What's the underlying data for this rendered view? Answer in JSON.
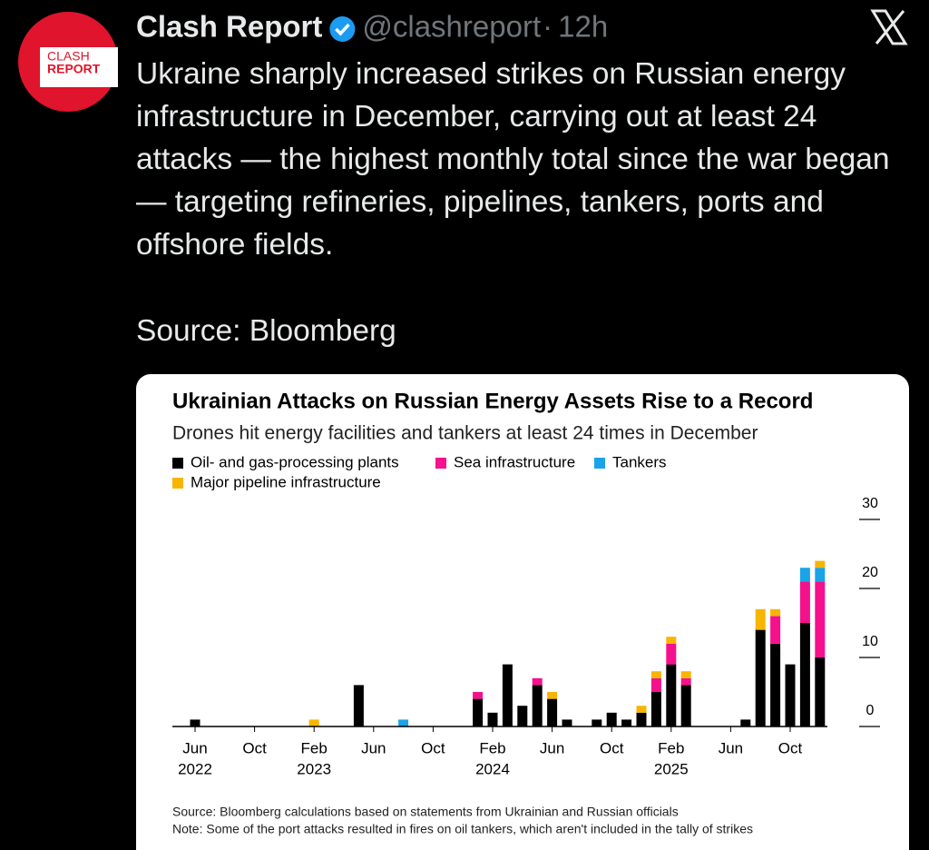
{
  "tweet": {
    "author": "Clash Report",
    "handle": "@clashreport",
    "separator": "·",
    "time": "12h",
    "avatar_top": "CLASH",
    "avatar_bottom": "REPORT",
    "text": "Ukraine sharply increased strikes on Russian energy infrastructure in December, carrying out at least 24 attacks — the highest monthly total since the war began — targeting refineries, pipelines, tankers, ports and offshore fields.",
    "source": "Source: Bloomberg"
  },
  "chart_data": {
    "type": "stacked_bar",
    "title": "Ukrainian Attacks on Russian Energy Assets Rise to a Record",
    "subtitle": "Drones hit energy facilities and tankers at least 24 times in December",
    "categories": [
      "Jun",
      null,
      null,
      null,
      "Oct",
      null,
      null,
      null,
      "Feb",
      null,
      null,
      null,
      "Jun",
      null,
      null,
      null,
      "Oct",
      null,
      null,
      null,
      "Feb",
      null,
      null,
      null,
      "Jun",
      null,
      null,
      null,
      "Oct",
      null,
      null,
      null,
      "Feb",
      null,
      null,
      null,
      "Jun",
      null,
      null,
      null,
      "Oct",
      null,
      null
    ],
    "years": [
      "2022",
      null,
      null,
      null,
      null,
      null,
      null,
      null,
      "2023",
      null,
      null,
      null,
      null,
      null,
      null,
      null,
      null,
      null,
      null,
      null,
      "2024",
      null,
      null,
      null,
      null,
      null,
      null,
      null,
      null,
      null,
      null,
      null,
      "2025",
      null,
      null,
      null,
      null,
      null,
      null,
      null,
      null,
      null,
      null
    ],
    "series": [
      {
        "name": "Oil- and gas-processing plants",
        "color": "#000000",
        "values": [
          1,
          0,
          0,
          0,
          0,
          0,
          0,
          0,
          0,
          0,
          0,
          6,
          0,
          0,
          0,
          0,
          0,
          0,
          0,
          4,
          2,
          9,
          3,
          6,
          4,
          1,
          0,
          1,
          2,
          1,
          2,
          5,
          9,
          6,
          0,
          0,
          0,
          1,
          14,
          12,
          9,
          15,
          10
        ]
      },
      {
        "name": "Sea infrastructure",
        "color": "#f5108c",
        "values": [
          0,
          0,
          0,
          0,
          0,
          0,
          0,
          0,
          0,
          0,
          0,
          0,
          0,
          0,
          0,
          0,
          0,
          0,
          0,
          1,
          0,
          0,
          0,
          1,
          0,
          0,
          0,
          0,
          0,
          0,
          0,
          2,
          3,
          1,
          0,
          0,
          0,
          0,
          0,
          4,
          0,
          6,
          11
        ]
      },
      {
        "name": "Tankers",
        "color": "#1aa3e8",
        "values": [
          0,
          0,
          0,
          0,
          0,
          0,
          0,
          0,
          0,
          0,
          0,
          0,
          0,
          0,
          1,
          0,
          0,
          0,
          0,
          0,
          0,
          0,
          0,
          0,
          0,
          0,
          0,
          0,
          0,
          0,
          0,
          0,
          0,
          0,
          0,
          0,
          0,
          0,
          0,
          0,
          0,
          2,
          2
        ]
      },
      {
        "name": "Major pipeline infrastructure",
        "color": "#f7b500",
        "values": [
          0,
          0,
          0,
          0,
          0,
          0,
          0,
          0,
          1,
          0,
          0,
          0,
          0,
          0,
          0,
          0,
          0,
          0,
          0,
          0,
          0,
          0,
          0,
          0,
          1,
          0,
          0,
          0,
          0,
          0,
          1,
          1,
          1,
          1,
          0,
          0,
          0,
          0,
          3,
          1,
          0,
          0,
          1
        ]
      }
    ],
    "ylim": [
      0,
      30
    ],
    "yticks": [
      0,
      10,
      20,
      30
    ],
    "notes": [
      "Source: Bloomberg calculations based on statements from Ukrainian and Russian officials",
      "Note: Some of the port attacks resulted in fires on oil tankers, which aren't included in the tally of strikes"
    ]
  }
}
